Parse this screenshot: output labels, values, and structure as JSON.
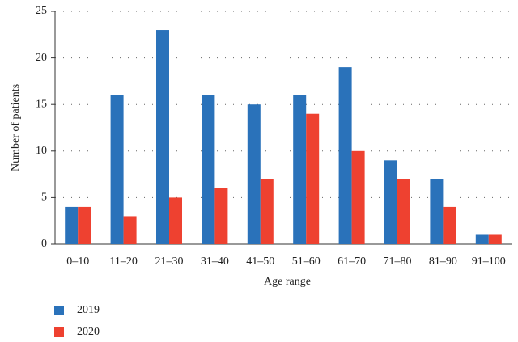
{
  "chart_data": {
    "type": "bar",
    "xlabel": "Age range",
    "ylabel": "Number of patients",
    "categories": [
      "0–10",
      "11–20",
      "21–30",
      "31–40",
      "41–50",
      "51–60",
      "61–70",
      "71–80",
      "81–90",
      "91–100"
    ],
    "series": [
      {
        "name": "2019",
        "color": "#2a72ba",
        "values": [
          4,
          16,
          23,
          16,
          15,
          16,
          19,
          9,
          7,
          1
        ]
      },
      {
        "name": "2020",
        "color": "#ee4130",
        "values": [
          4,
          3,
          5,
          6,
          7,
          14,
          10,
          7,
          4,
          1
        ]
      }
    ],
    "ylim": [
      0,
      25
    ],
    "yticks": [
      0,
      5,
      10,
      15,
      20,
      25
    ],
    "grid": true,
    "legend": "bottom-left"
  }
}
